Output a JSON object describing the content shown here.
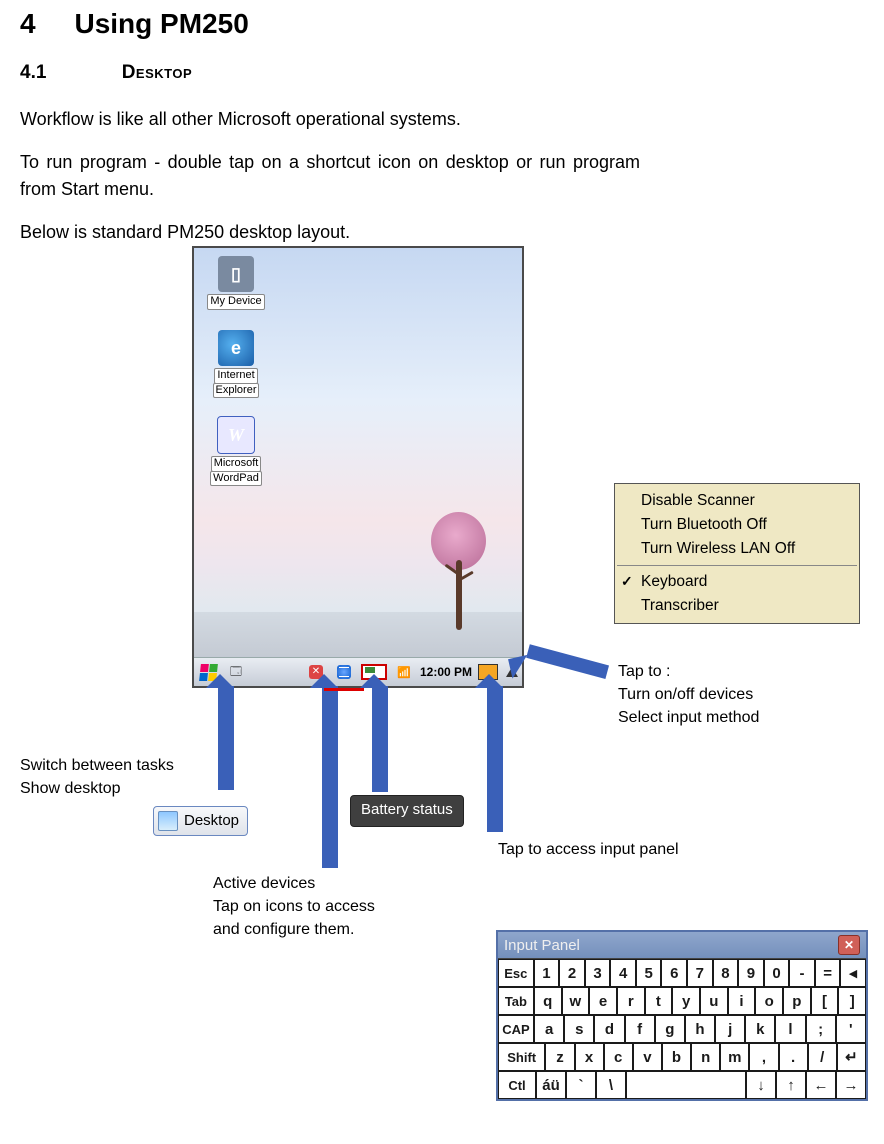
{
  "chapter": {
    "num": "4",
    "title": "Using PM250"
  },
  "section": {
    "num": "4.1",
    "title": "Desktop"
  },
  "para1": "Workflow is like all other Microsoft operational systems.",
  "para2": "To run program - double tap on a shortcut icon on desktop or run program from Start menu.",
  "para3": "Below is standard PM250 desktop layout.",
  "icons": {
    "mydevice": "My Device",
    "ie1": "Internet",
    "ie2": "Explorer",
    "wp1": "Microsoft",
    "wp2": "WordPad"
  },
  "taskbar": {
    "clock": "12:00 PM"
  },
  "menu": {
    "i1": "Disable Scanner",
    "i2": "Turn Bluetooth Off",
    "i3": "Turn Wireless LAN Off",
    "i4": "Keyboard",
    "i5": "Transcriber"
  },
  "anno": {
    "tapTo1": "Tap to :",
    "tapTo2": "Turn on/off devices",
    "tapTo3": "Select input method",
    "switch1": "Switch between tasks",
    "switch2": "Show desktop",
    "desktopBtn": "Desktop",
    "battery": "Battery status",
    "active1": "Active devices",
    "active2": "Tap on icons to access",
    "active3": "and configure them.",
    "inputAccess": "Tap to access input panel"
  },
  "inputPanel": {
    "title": "Input Panel",
    "rows": [
      [
        "Esc",
        "1",
        "2",
        "3",
        "4",
        "5",
        "6",
        "7",
        "8",
        "9",
        "0",
        "-",
        "=",
        "◂"
      ],
      [
        "Tab",
        "q",
        "w",
        "e",
        "r",
        "t",
        "y",
        "u",
        "i",
        "o",
        "p",
        "[",
        "]"
      ],
      [
        "CAP",
        "a",
        "s",
        "d",
        "f",
        "g",
        "h",
        "j",
        "k",
        "l",
        ";",
        "'"
      ],
      [
        "Shift",
        "z",
        "x",
        "c",
        "v",
        "b",
        "n",
        "m",
        ",",
        ".",
        "/",
        "↵"
      ],
      [
        "Ctl",
        "áü",
        "`",
        "\\",
        " ",
        "↓",
        "↑",
        "←",
        "→"
      ]
    ],
    "wideFirst": [
      36,
      36,
      36,
      48,
      36
    ]
  }
}
